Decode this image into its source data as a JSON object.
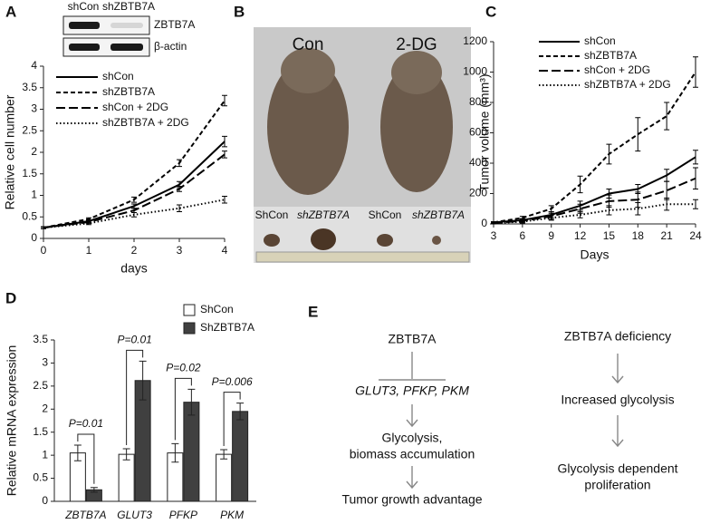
{
  "panels": [
    "A",
    "B",
    "C",
    "D",
    "E"
  ],
  "blot": {
    "lanes": [
      "shCon",
      "shZBTB7A"
    ],
    "rows": [
      "ZBTB7A",
      "β-actin"
    ]
  },
  "photo": {
    "groups": [
      "Con",
      "2-DG"
    ],
    "lanes": [
      "ShCon",
      "shZBTB7A",
      "ShCon",
      "shZBTB7A"
    ]
  },
  "diagram": {
    "left": [
      "ZBTB7A",
      "GLUT3, PFKP, PKM",
      "Glycolysis,",
      "biomass accumulation",
      "Tumor growth advantage"
    ],
    "right": [
      "ZBTB7A deficiency",
      "Increased glycolysis",
      "Glycolysis dependent",
      "proliferation"
    ]
  },
  "chart_data": [
    {
      "type": "line",
      "x_label": "days",
      "y_label": "Relative cell number",
      "x": [
        0,
        1,
        2,
        3,
        4
      ],
      "xlim": [
        0,
        4
      ],
      "xticks": [
        0,
        1,
        2,
        3,
        4
      ],
      "ylim": [
        0,
        4
      ],
      "yticks": [
        0,
        0.5,
        1,
        1.5,
        2,
        2.5,
        3,
        3.5,
        4
      ],
      "legend": "upper left",
      "series": [
        {
          "name": "shCon",
          "color": "#000000",
          "dash": "solid",
          "values": [
            0.25,
            0.4,
            0.75,
            1.25,
            2.25
          ],
          "errors": [
            0.02,
            0.03,
            0.05,
            0.07,
            0.12
          ]
        },
        {
          "name": "shZBTB7A",
          "color": "#000000",
          "dash": "dashed",
          "values": [
            0.25,
            0.45,
            0.9,
            1.75,
            3.2
          ],
          "errors": [
            0.02,
            0.03,
            0.06,
            0.08,
            0.12
          ]
        },
        {
          "name": "shCon + 2DG",
          "color": "#000000",
          "dash": "longdash",
          "values": [
            0.25,
            0.38,
            0.65,
            1.15,
            1.95
          ],
          "errors": [
            0.02,
            0.03,
            0.05,
            0.06,
            0.08
          ]
        },
        {
          "name": "shZBTB7A + 2DG",
          "color": "#000000",
          "dash": "dotted",
          "values": [
            0.25,
            0.35,
            0.55,
            0.7,
            0.9
          ],
          "errors": [
            0.02,
            0.03,
            0.05,
            0.08,
            0.08
          ]
        }
      ]
    },
    {
      "type": "line",
      "x_label": "Days",
      "y_label": "Tumor volume (mm³)",
      "x": [
        3,
        6,
        9,
        12,
        15,
        18,
        21,
        24
      ],
      "xlim": [
        3,
        24
      ],
      "xticks": [
        3,
        6,
        9,
        12,
        15,
        18,
        21,
        24
      ],
      "ylim": [
        0,
        1200
      ],
      "yticks": [
        0,
        200,
        400,
        600,
        800,
        1000,
        1200
      ],
      "legend": "upper left",
      "series": [
        {
          "name": "shCon",
          "color": "#000000",
          "dash": "solid",
          "values": [
            10,
            25,
            60,
            120,
            200,
            230,
            320,
            440
          ],
          "errors": [
            5,
            10,
            20,
            30,
            30,
            30,
            40,
            45
          ]
        },
        {
          "name": "shZBTB7A",
          "color": "#000000",
          "dash": "dashed",
          "values": [
            10,
            40,
            100,
            260,
            460,
            590,
            710,
            1000
          ],
          "errors": [
            5,
            10,
            20,
            55,
            65,
            110,
            90,
            100
          ]
        },
        {
          "name": "shCon + 2DG",
          "color": "#000000",
          "dash": "longdash",
          "values": [
            5,
            20,
            50,
            100,
            150,
            160,
            220,
            300
          ],
          "errors": [
            5,
            10,
            20,
            30,
            40,
            50,
            60,
            70
          ]
        },
        {
          "name": "shZBTB7A + 2DG",
          "color": "#000000",
          "dash": "dotted",
          "values": [
            5,
            15,
            40,
            60,
            90,
            100,
            130,
            130
          ],
          "errors": [
            5,
            10,
            15,
            20,
            30,
            40,
            40,
            30
          ]
        }
      ]
    },
    {
      "type": "bar",
      "y_label": "Relative mRNA expression",
      "categories": [
        "ZBTB7A",
        "GLUT3",
        "PFKP",
        "PKM"
      ],
      "ylim": [
        0,
        3.5
      ],
      "yticks": [
        0,
        0.5,
        1,
        1.5,
        2,
        2.5,
        3,
        3.5
      ],
      "legend": "upper right",
      "annotations": [
        "P=0.01",
        "P=0.01",
        "P=0.02",
        "P=0.006"
      ],
      "series": [
        {
          "name": "ShCon",
          "color": "#ffffff",
          "values": [
            1.05,
            1.02,
            1.05,
            1.02
          ],
          "errors": [
            0.17,
            0.12,
            0.2,
            0.1
          ]
        },
        {
          "name": "ShZBTB7A",
          "color": "#404040",
          "values": [
            0.25,
            2.62,
            2.15,
            1.95
          ],
          "errors": [
            0.05,
            0.42,
            0.28,
            0.18
          ]
        }
      ]
    }
  ]
}
